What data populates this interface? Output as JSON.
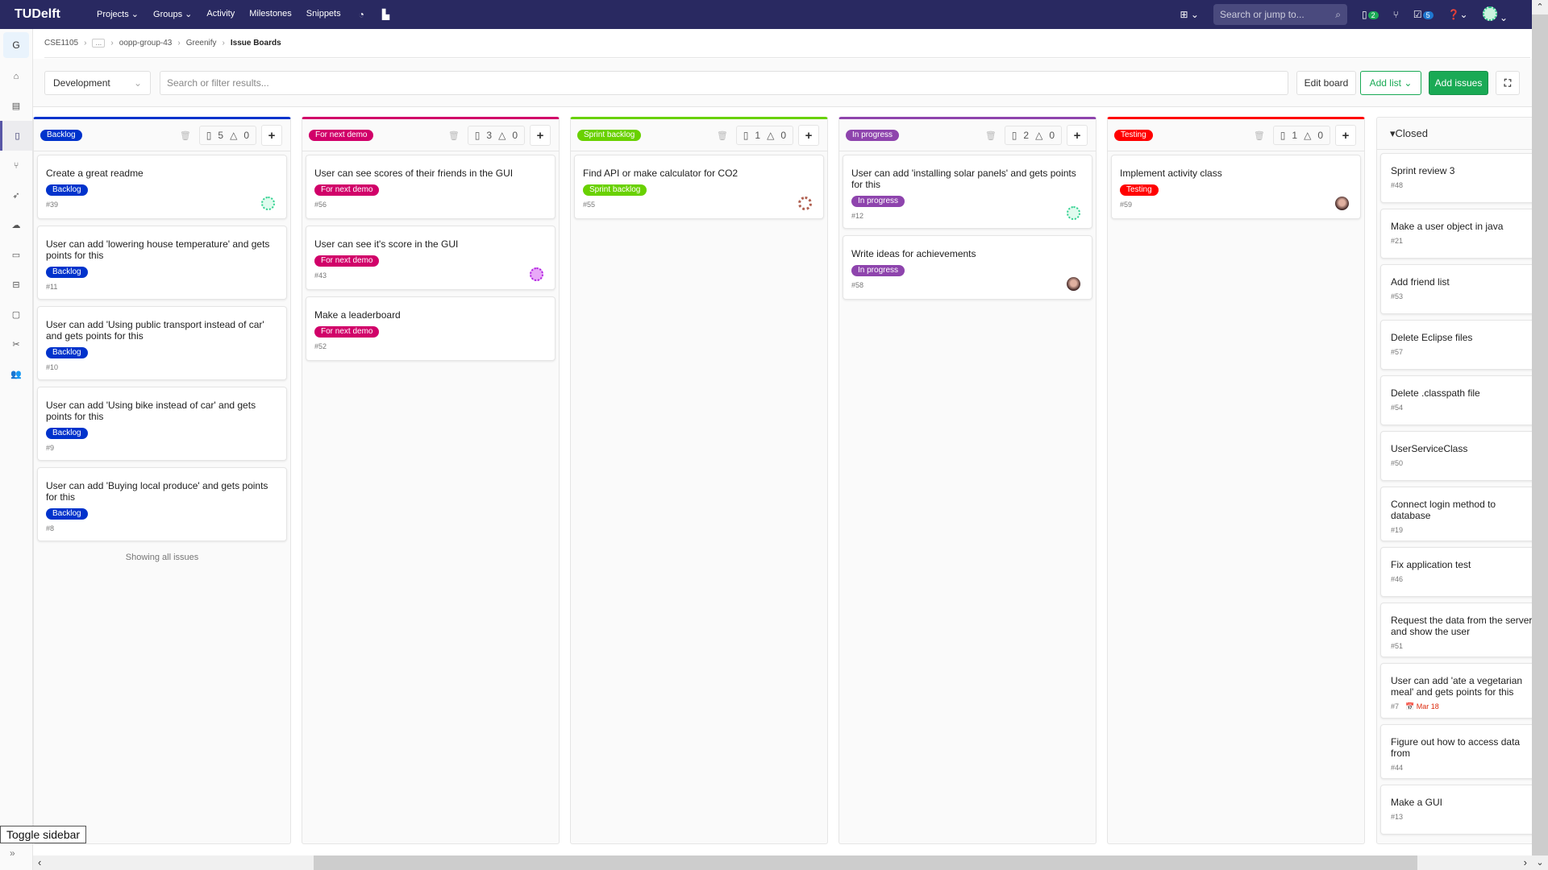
{
  "nav": {
    "logo": "TUDelft",
    "links": [
      "Projects ⌄",
      "Groups ⌄",
      "Activity",
      "Milestones",
      "Snippets"
    ],
    "search_placeholder": "Search or jump to...",
    "issues_badge": "2",
    "todos_badge": "5"
  },
  "breadcrumb": {
    "items": [
      "CSE1105",
      "oopp-group-43",
      "Greenify",
      "Issue Boards"
    ],
    "more": "…"
  },
  "filter": {
    "board": "Development",
    "placeholder": "Search or filter results...",
    "edit_board": "Edit board",
    "add_list": "Add list",
    "add_issues": "Add issues"
  },
  "sidebar": {
    "group_letter": "G"
  },
  "lists": [
    {
      "label": "Backlog",
      "color": "#0033cc",
      "issues": "5",
      "weight": "0",
      "cards": [
        {
          "title": "Create a great readme",
          "num": "#39",
          "avatar": "green"
        },
        {
          "title": "User can add 'lowering house temperature' and gets points for this",
          "num": "#11"
        },
        {
          "title": "User can add 'Using public transport instead of car' and gets points for this",
          "num": "#10"
        },
        {
          "title": "User can add 'Using bike instead of car' and gets points for this",
          "num": "#9"
        },
        {
          "title": "User can add 'Buying local produce' and gets points for this",
          "num": "#8"
        }
      ],
      "footer": "Showing all issues"
    },
    {
      "label": "For next demo",
      "color": "#d10069",
      "issues": "3",
      "weight": "0",
      "cards": [
        {
          "title": "User can see scores of their friends in the GUI",
          "num": "#56"
        },
        {
          "title": "User can see it's score in the GUI",
          "num": "#43",
          "avatar": "purple"
        },
        {
          "title": "Make a leaderboard",
          "num": "#52"
        }
      ]
    },
    {
      "label": "Sprint backlog",
      "color": "#69d100",
      "issues": "1",
      "weight": "0",
      "cards": [
        {
          "title": "Find API or make calculator for CO2",
          "num": "#55",
          "avatar": "brown"
        }
      ]
    },
    {
      "label": "In progress",
      "color": "#8e44ad",
      "issues": "2",
      "weight": "0",
      "cards": [
        {
          "title": "User can add 'installing solar panels' and gets points for this",
          "num": "#12",
          "avatar": "green"
        },
        {
          "title": "Write ideas for achievements",
          "num": "#58",
          "avatar": "photo"
        }
      ]
    },
    {
      "label": "Testing",
      "color": "#ff0000",
      "issues": "1",
      "weight": "0",
      "cards": [
        {
          "title": "Implement activity class",
          "num": "#59",
          "avatar": "photo"
        }
      ]
    }
  ],
  "closed": {
    "title": "Closed",
    "cards": [
      {
        "title": "Sprint review 3",
        "num": "#48"
      },
      {
        "title": "Make a user object in java",
        "num": "#21"
      },
      {
        "title": "Add friend list",
        "num": "#53"
      },
      {
        "title": "Delete Eclipse files",
        "num": "#57"
      },
      {
        "title": "Delete .classpath file",
        "num": "#54"
      },
      {
        "title": "UserServiceClass",
        "num": "#50"
      },
      {
        "title": "Connect login method to database",
        "num": "#19"
      },
      {
        "title": "Fix application test",
        "num": "#46"
      },
      {
        "title": "Request the data from the server and show the user",
        "num": "#51"
      },
      {
        "title": "User can add 'ate a vegetarian meal' and gets points for this",
        "num": "#7",
        "due": "Mar 18"
      },
      {
        "title": "Figure out how to access data from",
        "num": "#44"
      },
      {
        "title": "Make a GUI",
        "num": "#13"
      }
    ]
  },
  "tooltip": "Toggle sidebar"
}
